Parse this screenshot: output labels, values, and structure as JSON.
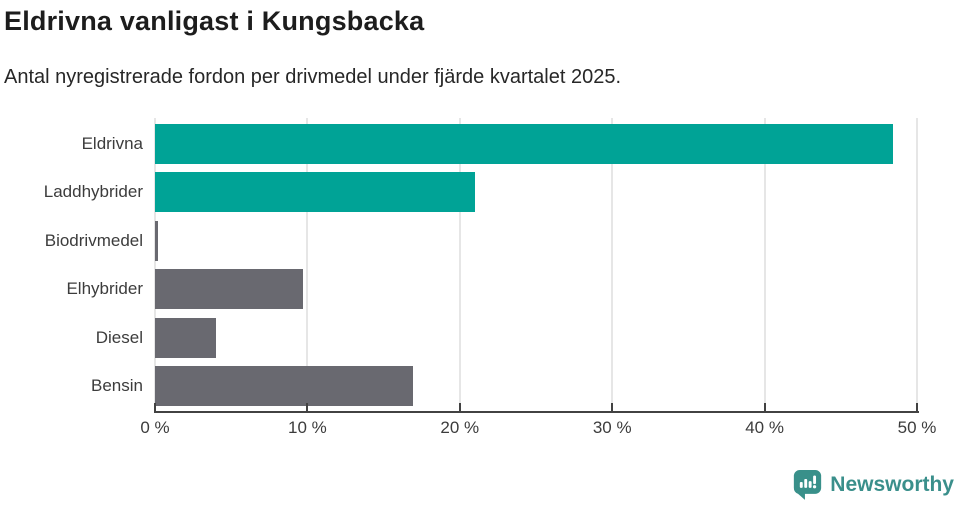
{
  "header": {
    "title": "Eldrivna vanligast i Kungsbacka",
    "subtitle": "Antal nyregistrerade fordon per drivmedel under fjärde kvartalet 2025."
  },
  "chart_data": {
    "type": "bar",
    "orientation": "horizontal",
    "title": "Eldrivna vanligast i Kungsbacka",
    "subtitle": "Antal nyregistrerade fordon per drivmedel under fjärde kvartalet 2025.",
    "categories": [
      "Eldrivna",
      "Laddhybrider",
      "Biodrivmedel",
      "Elhybrider",
      "Diesel",
      "Bensin"
    ],
    "values": [
      48.4,
      21.0,
      0.2,
      9.7,
      4.0,
      16.9
    ],
    "unit": "%",
    "bar_colors": [
      "#00a396",
      "#00a396",
      "#696970",
      "#696970",
      "#696970",
      "#696970"
    ],
    "xlabel": "",
    "ylabel": "",
    "xlim": [
      0,
      50
    ],
    "x_ticks": [
      0,
      10,
      20,
      30,
      40,
      50
    ],
    "x_tick_labels": [
      "0 %",
      "10 %",
      "20 %",
      "30 %",
      "40 %",
      "50 %"
    ],
    "grid": "vertical-gridlines",
    "legend": "none"
  },
  "footer": {
    "brand": "Newsworthy",
    "logo_icon": "newsworthy-speech-bubble-bar-chart-icon"
  },
  "colors": {
    "accent_teal": "#00a396",
    "bar_gray": "#696970",
    "brand_teal": "#3a8f8b",
    "axis": "#424242",
    "gridline": "#e6e6e6",
    "title_text": "#1d1d1d",
    "label_text": "#3c3c3c",
    "background": "#ffffff"
  }
}
